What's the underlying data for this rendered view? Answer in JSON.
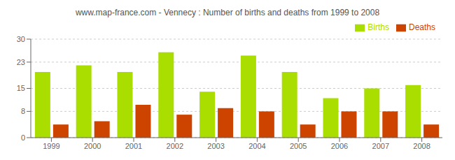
{
  "chart_data": {
    "type": "bar",
    "title": "www.map-france.com - Vennecy : Number of births and deaths from 1999 to 2008",
    "categories": [
      "1999",
      "2000",
      "2001",
      "2002",
      "2003",
      "2004",
      "2005",
      "2006",
      "2007",
      "2008"
    ],
    "series": [
      {
        "name": "Births",
        "color": "#AADD00",
        "values": [
          20,
          22,
          20,
          26,
          14,
          25,
          20,
          12,
          15,
          16
        ]
      },
      {
        "name": "Deaths",
        "color": "#CC4400",
        "values": [
          4,
          5,
          10,
          7,
          9,
          8,
          4,
          8,
          8,
          4
        ]
      }
    ],
    "ylim": [
      0,
      30
    ],
    "yticks": [
      0,
      8,
      15,
      23,
      30
    ],
    "grid": true,
    "legend": "upper right"
  }
}
